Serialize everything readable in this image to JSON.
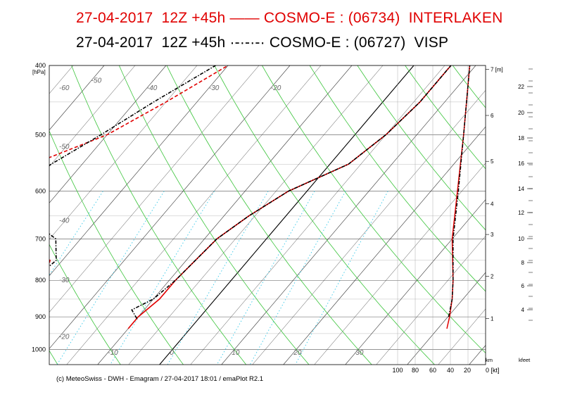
{
  "chart_data": {
    "type": "line",
    "title_line1": "27-04-2017  12Z +45h —— COSMO-E : (06734)  INTERLAKEN",
    "title_line2": "27-04-2017  12Z +45h ·-·-·-· COSMO-E : (06727)  VISP",
    "y_axis_unit": "[hPa]",
    "pressure_ticks": [
      400,
      500,
      600,
      700,
      800,
      900,
      1000
    ],
    "plim": [
      400,
      1050
    ],
    "wind_axis_labels": [
      "100",
      "80",
      "60",
      "40",
      "20",
      "0 [kt]"
    ],
    "km_labels": [
      "1",
      "2",
      "3",
      "4",
      "5",
      "6",
      "7 [m]"
    ],
    "km_unit": "km",
    "kfeet_labels": [
      "4",
      "6",
      "8",
      "10",
      "12",
      "14",
      "16",
      "18",
      "20",
      "22"
    ],
    "kfeet_unit": "kfeet",
    "isotherm_labels": [
      "-60",
      "-50",
      "-40",
      "-30",
      "-20",
      "-10",
      "0",
      "10",
      "20",
      "30"
    ],
    "dry_adiabat_labels": [
      "-60",
      "-50",
      "-40",
      "-30",
      "-20",
      "10",
      "20",
      "30"
    ],
    "grid": true,
    "series": [
      {
        "name": "INTERLAKEN",
        "color": "#e00000",
        "temperature": [
          [
            935,
            -10
          ],
          [
            900,
            -10
          ],
          [
            850,
            -9
          ],
          [
            800,
            -9
          ],
          [
            700,
            -8
          ],
          [
            650,
            -6
          ],
          [
            600,
            -3
          ],
          [
            550,
            3
          ],
          [
            500,
            5
          ],
          [
            450,
            6
          ],
          [
            400,
            6
          ]
        ],
        "dewpoint": [
          [
            935,
            -26
          ],
          [
            910,
            -30
          ],
          [
            850,
            -30
          ],
          [
            800,
            -30
          ],
          [
            750,
            -32
          ],
          [
            700,
            -42
          ],
          [
            650,
            -52
          ],
          [
            600,
            -54
          ],
          [
            550,
            -48
          ],
          [
            500,
            -40
          ],
          [
            450,
            -35
          ],
          [
            400,
            -30
          ]
        ],
        "profile_right": [
          [
            935,
            44
          ],
          [
            900,
            41
          ],
          [
            850,
            38
          ],
          [
            800,
            37
          ],
          [
            700,
            38
          ],
          [
            600,
            32
          ],
          [
            500,
            25
          ],
          [
            400,
            18
          ]
        ]
      },
      {
        "name": "VISP",
        "color": "#000000",
        "temperature": [
          [
            905,
            -10
          ],
          [
            880,
            -12
          ],
          [
            850,
            -10
          ],
          [
            800,
            -9
          ],
          [
            700,
            -8
          ],
          [
            650,
            -6
          ],
          [
            600,
            -3
          ],
          [
            550,
            3
          ],
          [
            500,
            5
          ],
          [
            450,
            6
          ],
          [
            400,
            6
          ]
        ],
        "dewpoint": [
          [
            905,
            -31
          ],
          [
            850,
            -30
          ],
          [
            800,
            -32
          ],
          [
            750,
            -31
          ],
          [
            700,
            -34
          ],
          [
            650,
            -42
          ],
          [
            600,
            -48
          ],
          [
            550,
            -45
          ],
          [
            500,
            -41
          ],
          [
            450,
            -37
          ],
          [
            400,
            -32
          ]
        ],
        "profile_right": [
          [
            900,
            42
          ],
          [
            850,
            38
          ],
          [
            800,
            37
          ],
          [
            700,
            37
          ],
          [
            600,
            31
          ],
          [
            500,
            25
          ],
          [
            400,
            18
          ]
        ]
      }
    ]
  },
  "footer": "(c) MeteoSwiss - DWH - Emagram / 27-04-2017  18:01 / emaPlot R2.1"
}
